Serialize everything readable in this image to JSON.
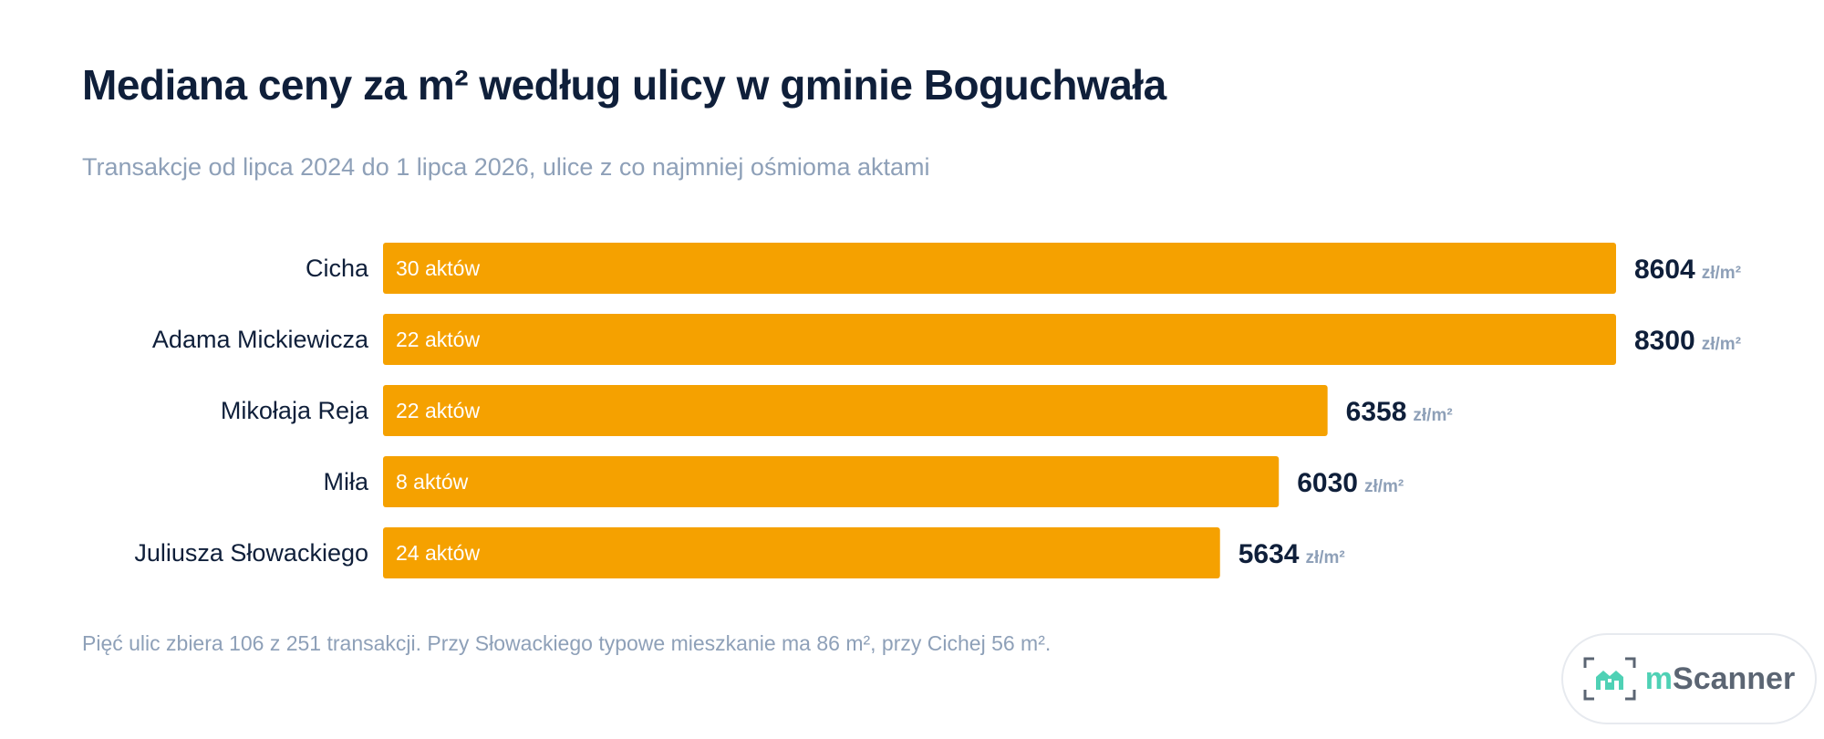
{
  "title": "Mediana ceny za m² według ulicy w gminie Boguchwała",
  "subtitle": "Transakcje od lipca 2024 do 1 lipca 2026, ulice z co najmniej ośmioma aktami",
  "footnote": "Pięć ulic zbiera 106 z 251 transakcji. Przy Słowackiego typowe mieszkanie ma 86 m², przy Cichej 56 m².",
  "logo": {
    "prefix": "m",
    "name": "Scanner",
    "icon": "house-scan-icon"
  },
  "colors": {
    "bar": "#f5a100",
    "title": "#0f1f3a",
    "muted": "#8ea0b8",
    "logo_accent": "#4fd1b5"
  },
  "chart_data": {
    "type": "bar",
    "orientation": "horizontal",
    "categories": [
      "Cicha",
      "Adama Mickiewicza",
      "Mikołaja Reja",
      "Miła",
      "Juliusza Słowackiego"
    ],
    "values": [
      8604,
      8300,
      6358,
      6030,
      5634
    ],
    "bar_labels": [
      "30 aktów",
      "22 aktów",
      "22 aktów",
      "8 aktów",
      "24 aktów"
    ],
    "unit": "zł/m²",
    "xlim": [
      0,
      8300
    ],
    "grid": false,
    "legend": "none"
  }
}
